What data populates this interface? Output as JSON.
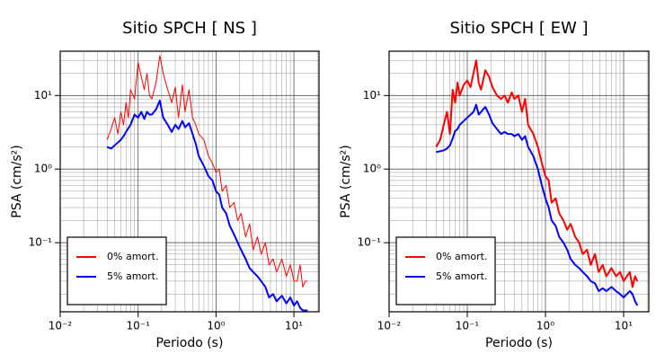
{
  "chart_data": [
    {
      "type": "line",
      "title": "Sitio SPCH [ NS ]",
      "xlabel": "Periodo (s)",
      "ylabel": "PSA (cm/s²)",
      "xscale": "log",
      "yscale": "log",
      "grid": true,
      "legend": "lower left",
      "xlim": [
        0.01,
        21
      ],
      "ylim": [
        0.0115,
        40
      ],
      "xticks": [
        {
          "value": 0.01,
          "label": "10⁻²"
        },
        {
          "value": 0.1,
          "label": "10⁻¹"
        },
        {
          "value": 1,
          "label": "10⁰"
        },
        {
          "value": 10,
          "label": "10¹"
        }
      ],
      "yticks": [
        {
          "value": 0.1,
          "label": "10⁻¹"
        },
        {
          "value": 1,
          "label": "10⁰"
        },
        {
          "value": 10,
          "label": "10¹"
        }
      ],
      "x": [
        0.04,
        0.045,
        0.05,
        0.055,
        0.06,
        0.065,
        0.07,
        0.075,
        0.08,
        0.09,
        0.1,
        0.11,
        0.12,
        0.13,
        0.14,
        0.15,
        0.17,
        0.19,
        0.21,
        0.24,
        0.27,
        0.3,
        0.33,
        0.37,
        0.4,
        0.45,
        0.5,
        0.55,
        0.6,
        0.7,
        0.8,
        0.9,
        1,
        1.1,
        1.2,
        1.35,
        1.5,
        1.7,
        1.9,
        2.1,
        2.4,
        2.7,
        3,
        3.4,
        3.8,
        4.3,
        4.8,
        5.4,
        6,
        7,
        8,
        9,
        10,
        11,
        12,
        13,
        14,
        15
      ],
      "series": [
        {
          "name": "0% amort.",
          "color": "#ff0000",
          "linewidth": 1,
          "values": [
            2.5,
            3.5,
            5,
            3,
            6,
            4,
            8,
            5,
            12,
            9,
            28,
            18,
            12,
            20,
            10,
            9,
            15,
            35,
            20,
            12,
            8,
            13,
            5,
            14,
            6,
            12,
            5,
            4,
            3,
            2.5,
            1.5,
            1.2,
            0.9,
            1.0,
            0.5,
            0.6,
            0.3,
            0.35,
            0.2,
            0.25,
            0.12,
            0.18,
            0.08,
            0.12,
            0.07,
            0.1,
            0.05,
            0.06,
            0.04,
            0.06,
            0.035,
            0.05,
            0.03,
            0.03,
            0.05,
            0.025,
            0.03,
            0.03
          ]
        },
        {
          "name": "5% amort.",
          "color": "#0000ff",
          "linewidth": 2,
          "values": [
            2,
            1.9,
            2.1,
            2.3,
            2.5,
            2.8,
            3.2,
            3.6,
            4,
            5.5,
            5,
            6,
            4.8,
            6,
            5.5,
            5.5,
            6.5,
            8.5,
            5,
            4,
            3.2,
            4,
            3.5,
            4.5,
            3.7,
            4.2,
            3,
            2.2,
            1.5,
            1.1,
            0.8,
            0.7,
            0.5,
            0.45,
            0.3,
            0.25,
            0.17,
            0.13,
            0.1,
            0.08,
            0.06,
            0.045,
            0.04,
            0.035,
            0.03,
            0.025,
            0.018,
            0.02,
            0.016,
            0.019,
            0.015,
            0.018,
            0.014,
            0.016,
            0.013,
            0.012,
            0.012,
            0.012
          ]
        }
      ]
    },
    {
      "type": "line",
      "title": "Sitio SPCH [ EW ]",
      "xlabel": "Periodo (s)",
      "ylabel": "PSA (cm/s²)",
      "xscale": "log",
      "yscale": "log",
      "grid": true,
      "legend": "lower left",
      "xlim": [
        0.01,
        21
      ],
      "ylim": [
        0.0115,
        40
      ],
      "xticks": [
        {
          "value": 0.01,
          "label": "10⁻²"
        },
        {
          "value": 0.1,
          "label": "10⁻¹"
        },
        {
          "value": 1,
          "label": "10⁰"
        },
        {
          "value": 10,
          "label": "10¹"
        }
      ],
      "yticks": [
        {
          "value": 0.1,
          "label": "10⁻¹"
        },
        {
          "value": 1,
          "label": "10⁰"
        },
        {
          "value": 10,
          "label": "10¹"
        }
      ],
      "x": [
        0.04,
        0.045,
        0.05,
        0.055,
        0.06,
        0.065,
        0.07,
        0.075,
        0.08,
        0.09,
        0.1,
        0.11,
        0.12,
        0.13,
        0.14,
        0.15,
        0.17,
        0.19,
        0.21,
        0.24,
        0.27,
        0.3,
        0.33,
        0.37,
        0.4,
        0.45,
        0.5,
        0.55,
        0.6,
        0.7,
        0.8,
        0.9,
        1,
        1.1,
        1.2,
        1.35,
        1.5,
        1.7,
        1.9,
        2.1,
        2.4,
        2.7,
        3,
        3.4,
        3.8,
        4.3,
        4.8,
        5.4,
        6,
        7,
        8,
        9,
        10,
        11,
        12,
        13,
        14,
        15
      ],
      "series": [
        {
          "name": "0% amort.",
          "color": "#ff0000",
          "linewidth": 2,
          "values": [
            2,
            2.5,
            4,
            6,
            3,
            12,
            8,
            15,
            10,
            14,
            16,
            13,
            20,
            30,
            15,
            12,
            22,
            18,
            13,
            10,
            9,
            10,
            8,
            11,
            9,
            10,
            6,
            9,
            4,
            3,
            2,
            1.2,
            0.8,
            0.7,
            0.35,
            0.4,
            0.25,
            0.2,
            0.15,
            0.18,
            0.12,
            0.1,
            0.07,
            0.08,
            0.05,
            0.07,
            0.04,
            0.05,
            0.035,
            0.045,
            0.035,
            0.04,
            0.03,
            0.035,
            0.04,
            0.025,
            0.035,
            0.03
          ]
        },
        {
          "name": "5% amort.",
          "color": "#0000ff",
          "linewidth": 2,
          "values": [
            1.7,
            1.75,
            1.8,
            1.9,
            2.1,
            2.6,
            3.3,
            3.5,
            4,
            4.5,
            5,
            5.5,
            6,
            7.5,
            5.5,
            6,
            7,
            5.5,
            4.2,
            3.5,
            3,
            3.2,
            3,
            3,
            2.8,
            3,
            2.5,
            2.8,
            2,
            1.5,
            1.0,
            0.6,
            0.4,
            0.3,
            0.2,
            0.17,
            0.12,
            0.1,
            0.08,
            0.06,
            0.05,
            0.045,
            0.04,
            0.035,
            0.03,
            0.028,
            0.022,
            0.024,
            0.022,
            0.025,
            0.022,
            0.02,
            0.018,
            0.02,
            0.022,
            0.02,
            0.016,
            0.014
          ]
        }
      ]
    }
  ]
}
